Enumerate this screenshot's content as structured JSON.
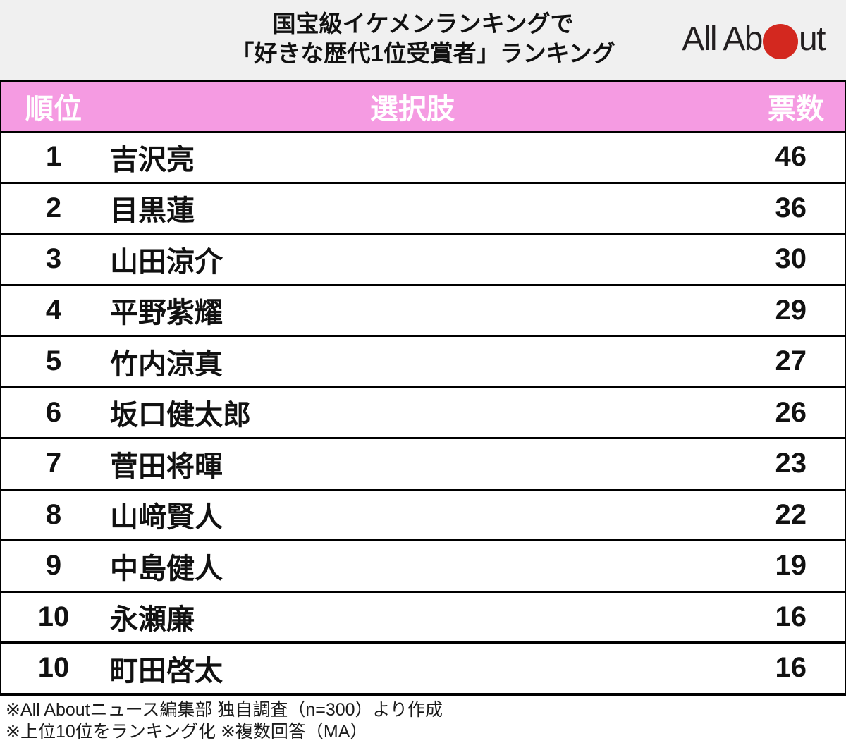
{
  "header": {
    "title_line1": "国宝級イケメンランキングで",
    "title_line2": "「好きな歴代1位受賞者」ランキング",
    "logo": {
      "text_left": "All Ab",
      "text_right": "ut",
      "alt": "All About"
    }
  },
  "table": {
    "columns": {
      "rank": "順位",
      "choice": "選択肢",
      "votes": "票数"
    },
    "rows": [
      {
        "rank": "1",
        "name": "吉沢亮",
        "votes": "46"
      },
      {
        "rank": "2",
        "name": "目黒蓮",
        "votes": "36"
      },
      {
        "rank": "3",
        "name": "山田涼介",
        "votes": "30"
      },
      {
        "rank": "4",
        "name": "平野紫耀",
        "votes": "29"
      },
      {
        "rank": "5",
        "name": "竹内涼真",
        "votes": "27"
      },
      {
        "rank": "6",
        "name": "坂口健太郎",
        "votes": "26"
      },
      {
        "rank": "7",
        "name": "菅田将暉",
        "votes": "23"
      },
      {
        "rank": "8",
        "name": "山﨑賢人",
        "votes": "22"
      },
      {
        "rank": "9",
        "name": "中島健人",
        "votes": "19"
      },
      {
        "rank": "10",
        "name": "永瀬廉",
        "votes": "16"
      },
      {
        "rank": "10",
        "name": "町田啓太",
        "votes": "16"
      }
    ]
  },
  "footer": {
    "note1": "※All Aboutニュース編集部 独自調査（n=300）より作成",
    "note2": "※上位10位をランキング化 ※複数回答（MA）"
  },
  "colors": {
    "header_bg": "#f0f0f0",
    "accent_pink": "#f59be2",
    "logo_red": "#d3281f",
    "border_black": "#000000",
    "header_text": "#ffffff",
    "body_text": "#111111"
  },
  "chart_data": {
    "type": "table",
    "title": "国宝級イケメンランキングで「好きな歴代1位受賞者」ランキング",
    "columns": [
      "順位",
      "選択肢",
      "票数"
    ],
    "rows": [
      [
        1,
        "吉沢亮",
        46
      ],
      [
        2,
        "目黒蓮",
        36
      ],
      [
        3,
        "山田涼介",
        30
      ],
      [
        4,
        "平野紫耀",
        29
      ],
      [
        5,
        "竹内涼真",
        27
      ],
      [
        6,
        "坂口健太郎",
        26
      ],
      [
        7,
        "菅田将暉",
        23
      ],
      [
        8,
        "山﨑賢人",
        22
      ],
      [
        9,
        "中島健人",
        19
      ],
      [
        10,
        "永瀬廉",
        16
      ],
      [
        10,
        "町田啓太",
        16
      ]
    ],
    "notes": [
      "※All Aboutニュース編集部 独自調査（n=300）より作成",
      "※上位10位をランキング化 ※複数回答（MA）"
    ]
  }
}
